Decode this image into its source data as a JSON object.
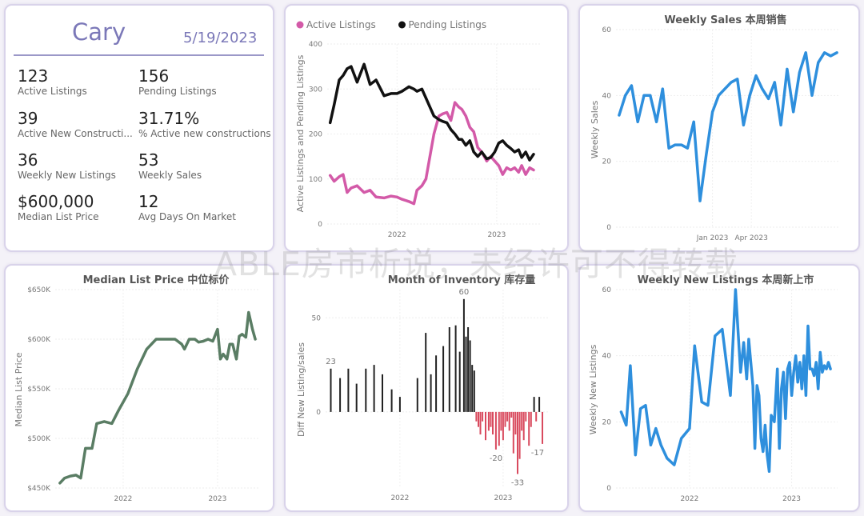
{
  "summary": {
    "city": "Cary",
    "date": "5/19/2023",
    "kpis": [
      {
        "value": "123",
        "label": "Active Listings"
      },
      {
        "value": "156",
        "label": "Pending Listings"
      },
      {
        "value": "39",
        "label": "Active New Constructi..."
      },
      {
        "value": "31.71%",
        "label": "% Active new constructions"
      },
      {
        "value": "36",
        "label": "Weekly New Listings"
      },
      {
        "value": "53",
        "label": "Weekly Sales"
      },
      {
        "value": "$600,000",
        "label": "Median List Price"
      },
      {
        "value": "12",
        "label": "Avg Days On Market"
      }
    ]
  },
  "watermark": "ABLE房市析说，未经许可不得转载",
  "colors": {
    "active": "#d35aa8",
    "pending": "#111111",
    "blue": "#2e8fdd",
    "green": "#5a7d64",
    "bar_pos": "#222222",
    "bar_neg": "#d94a5e"
  },
  "chart_data": [
    {
      "type": "line",
      "title": "",
      "legend": [
        "Active Listings",
        "Pending Listings"
      ],
      "legend_position": "top-left",
      "ylabel": "Active Listings and Pending Listings",
      "xlabel": "",
      "ylim": [
        0,
        400
      ],
      "yticks": [
        "0",
        "100",
        "200",
        "300",
        "400"
      ],
      "xticks": [
        "2022",
        "2023"
      ],
      "series": [
        {
          "name": "Active Listings",
          "color": "#d35aa8",
          "x": [
            2021.33,
            2021.37,
            2021.42,
            2021.46,
            2021.5,
            2021.54,
            2021.6,
            2021.67,
            2021.73,
            2021.79,
            2021.87,
            2021.94,
            2022.0,
            2022.05,
            2022.12,
            2022.17,
            2022.2,
            2022.25,
            2022.29,
            2022.33,
            2022.37,
            2022.42,
            2022.46,
            2022.5,
            2022.54,
            2022.58,
            2022.62,
            2022.65,
            2022.69,
            2022.73,
            2022.77,
            2022.81,
            2022.85,
            2022.9,
            2022.94,
            2022.98,
            2023.02,
            2023.06,
            2023.1,
            2023.14,
            2023.18,
            2023.22,
            2023.25,
            2023.29,
            2023.33,
            2023.37
          ],
          "y": [
            108,
            95,
            105,
            110,
            70,
            80,
            85,
            70,
            75,
            60,
            58,
            62,
            60,
            55,
            50,
            45,
            75,
            85,
            100,
            150,
            200,
            240,
            245,
            248,
            230,
            270,
            260,
            255,
            240,
            215,
            205,
            170,
            160,
            140,
            150,
            140,
            130,
            110,
            125,
            120,
            125,
            115,
            130,
            110,
            125,
            120
          ]
        },
        {
          "name": "Pending Listings",
          "color": "#111111",
          "x": [
            2021.33,
            2021.37,
            2021.42,
            2021.46,
            2021.5,
            2021.54,
            2021.6,
            2021.67,
            2021.73,
            2021.79,
            2021.87,
            2021.94,
            2022.0,
            2022.05,
            2022.12,
            2022.17,
            2022.2,
            2022.25,
            2022.29,
            2022.33,
            2022.37,
            2022.42,
            2022.46,
            2022.5,
            2022.54,
            2022.58,
            2022.62,
            2022.65,
            2022.69,
            2022.73,
            2022.77,
            2022.81,
            2022.85,
            2022.9,
            2022.94,
            2022.98,
            2023.02,
            2023.06,
            2023.1,
            2023.14,
            2023.18,
            2023.22,
            2023.25,
            2023.29,
            2023.33,
            2023.37
          ],
          "y": [
            225,
            265,
            320,
            330,
            345,
            350,
            315,
            355,
            310,
            320,
            285,
            290,
            290,
            295,
            305,
            300,
            295,
            300,
            280,
            260,
            240,
            232,
            228,
            225,
            210,
            200,
            188,
            188,
            175,
            185,
            160,
            150,
            160,
            145,
            148,
            160,
            180,
            185,
            175,
            168,
            160,
            165,
            148,
            160,
            142,
            155
          ]
        }
      ]
    },
    {
      "type": "line",
      "title": "Weekly Sales 本周销售",
      "xlabel": "",
      "ylabel": "Weekly Sales",
      "ylim": [
        0,
        60
      ],
      "yticks": [
        "0",
        "20",
        "40",
        "60"
      ],
      "xticks": [
        "Jan 2023",
        "Apr 2023"
      ],
      "series": [
        {
          "name": "Weekly Sales",
          "color": "#2e8fdd",
          "x": [
            2022.4,
            2022.44,
            2022.48,
            2022.52,
            2022.56,
            2022.6,
            2022.64,
            2022.68,
            2022.72,
            2022.76,
            2022.8,
            2022.84,
            2022.88,
            2022.92,
            2022.96,
            2023.0,
            2023.04,
            2023.08,
            2023.12,
            2023.16,
            2023.2,
            2023.24,
            2023.28,
            2023.32,
            2023.36,
            2023.4,
            2023.44,
            2023.48,
            2023.52,
            2023.56,
            2023.6,
            2023.64,
            2023.68,
            2023.72,
            2023.76,
            2023.8
          ],
          "y": [
            34,
            40,
            43,
            32,
            40,
            40,
            32,
            42,
            24,
            25,
            25,
            24,
            32,
            8,
            22,
            35,
            40,
            42,
            44,
            45,
            31,
            40,
            46,
            42,
            39,
            44,
            31,
            48,
            35,
            47,
            53,
            40,
            50,
            53,
            52,
            53
          ]
        }
      ]
    },
    {
      "type": "line",
      "title": "Median List Price  中位标价",
      "xlabel": "",
      "ylabel": "Median List Price",
      "ylim": [
        450000,
        650000
      ],
      "yticks": [
        "$450K",
        "$500K",
        "$550K",
        "$600K",
        "$650K"
      ],
      "xticks": [
        "2022",
        "2023"
      ],
      "series": [
        {
          "name": "Median List Price",
          "color": "#5a7d64",
          "x": [
            2021.33,
            2021.38,
            2021.44,
            2021.5,
            2021.55,
            2021.6,
            2021.67,
            2021.72,
            2021.8,
            2021.88,
            2021.95,
            2022.05,
            2022.15,
            2022.25,
            2022.35,
            2022.45,
            2022.55,
            2022.62,
            2022.65,
            2022.7,
            2022.76,
            2022.8,
            2022.85,
            2022.9,
            2022.95,
            2023.0,
            2023.03,
            2023.06,
            2023.1,
            2023.13,
            2023.16,
            2023.2,
            2023.23,
            2023.26,
            2023.3,
            2023.33,
            2023.37,
            2023.4
          ],
          "y": [
            455000,
            460000,
            462000,
            463000,
            460000,
            490000,
            490000,
            515000,
            517000,
            515000,
            528000,
            545000,
            570000,
            590000,
            600000,
            600000,
            600000,
            595000,
            590000,
            600000,
            600000,
            597000,
            598000,
            600000,
            598000,
            610000,
            580000,
            585000,
            580000,
            595000,
            595000,
            580000,
            603000,
            605000,
            602000,
            627000,
            610000,
            600000
          ]
        }
      ]
    },
    {
      "type": "bar",
      "title": "Month of Inventory 库存量",
      "xlabel": "",
      "ylabel": "Diff New Listing/sales",
      "ylim": [
        -40,
        65
      ],
      "yticks": [
        "0",
        "50"
      ],
      "xticks": [
        "2022",
        "2023"
      ],
      "annotations": [
        "23",
        "60",
        "-20",
        "-33",
        "-17"
      ],
      "x": [
        2021.33,
        2021.42,
        2021.5,
        2021.58,
        2021.67,
        2021.75,
        2021.83,
        2021.92,
        2022.0,
        2022.17,
        2022.25,
        2022.3,
        2022.35,
        2022.42,
        2022.48,
        2022.54,
        2022.58,
        2022.62,
        2022.64,
        2022.66,
        2022.68,
        2022.7,
        2022.72,
        2022.74,
        2022.76,
        2022.78,
        2022.8,
        2022.83,
        2022.86,
        2022.88,
        2022.9,
        2022.93,
        2022.96,
        2022.98,
        2023.0,
        2023.02,
        2023.04,
        2023.06,
        2023.08,
        2023.1,
        2023.12,
        2023.14,
        2023.16,
        2023.18,
        2023.2,
        2023.22,
        2023.25,
        2023.27,
        2023.3,
        2023.32,
        2023.35,
        2023.38
      ],
      "values": [
        23,
        18,
        23,
        15,
        23,
        25,
        20,
        12,
        8,
        18,
        42,
        20,
        30,
        35,
        45,
        46,
        32,
        60,
        40,
        45,
        38,
        25,
        22,
        -5,
        -8,
        -12,
        -5,
        -15,
        -10,
        -8,
        -12,
        -20,
        -18,
        -10,
        -15,
        -8,
        -5,
        -10,
        -3,
        -22,
        -12,
        -33,
        -25,
        -10,
        -15,
        -5,
        -18,
        -8,
        8,
        -5,
        8,
        -17
      ]
    },
    {
      "type": "line",
      "title": "Weekly New Listings  本周新上市",
      "xlabel": "",
      "ylabel": "Weekly New Listings",
      "ylim": [
        0,
        60
      ],
      "yticks": [
        "0",
        "20",
        "40",
        "60"
      ],
      "xticks": [
        "2022",
        "2023"
      ],
      "series": [
        {
          "name": "Weekly New Listings",
          "color": "#2e8fdd",
          "x": [
            2021.33,
            2021.38,
            2021.42,
            2021.47,
            2021.52,
            2021.57,
            2021.62,
            2021.67,
            2021.72,
            2021.78,
            2021.85,
            2021.92,
            2022.0,
            2022.05,
            2022.12,
            2022.18,
            2022.25,
            2022.32,
            2022.4,
            2022.45,
            2022.5,
            2022.53,
            2022.56,
            2022.58,
            2022.6,
            2022.62,
            2022.64,
            2022.66,
            2022.68,
            2022.7,
            2022.72,
            2022.74,
            2022.76,
            2022.78,
            2022.8,
            2022.83,
            2022.86,
            2022.88,
            2022.9,
            2022.92,
            2022.94,
            2022.96,
            2022.98,
            2023.0,
            2023.02,
            2023.04,
            2023.06,
            2023.08,
            2023.1,
            2023.12,
            2023.14,
            2023.16,
            2023.18,
            2023.2,
            2023.22,
            2023.24,
            2023.26,
            2023.28,
            2023.3,
            2023.32,
            2023.34,
            2023.36,
            2023.38
          ],
          "y": [
            23,
            19,
            37,
            10,
            24,
            25,
            13,
            18,
            13,
            9,
            7,
            15,
            18,
            43,
            26,
            25,
            46,
            48,
            28,
            60,
            35,
            44,
            33,
            45,
            38,
            31,
            12,
            31,
            28,
            15,
            11,
            19,
            10,
            5,
            22,
            20,
            36,
            12,
            30,
            35,
            21,
            36,
            38,
            28,
            35,
            40,
            32,
            38,
            30,
            40,
            28,
            49,
            36,
            36,
            34,
            38,
            30,
            41,
            35,
            37,
            36,
            38,
            36
          ]
        }
      ]
    }
  ]
}
